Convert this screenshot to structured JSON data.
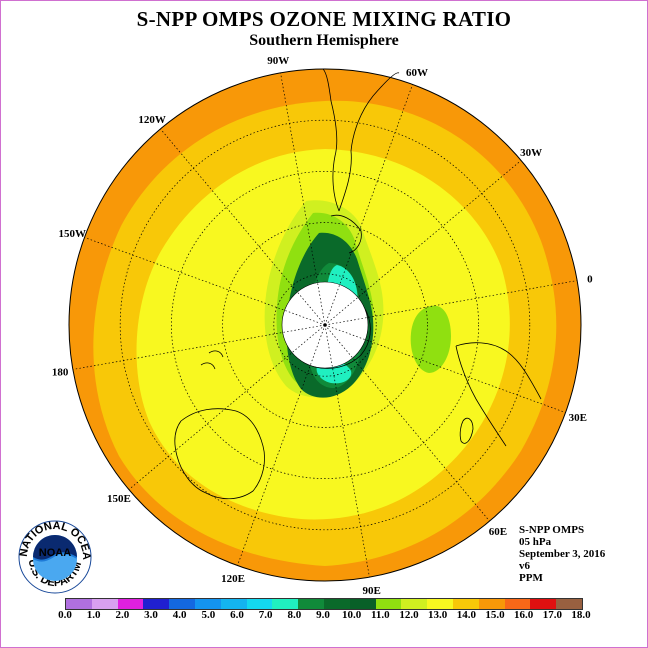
{
  "title": "S-NPP OMPS OZONE MIXING RATIO",
  "subtitle": "Southern Hemisphere",
  "longitude_labels": [
    {
      "text": "90W",
      "lon": -90
    },
    {
      "text": "60W",
      "lon": -60
    },
    {
      "text": "120W",
      "lon": -120
    },
    {
      "text": "30W",
      "lon": -30
    },
    {
      "text": "150W",
      "lon": -150
    },
    {
      "text": "0",
      "lon": 0
    },
    {
      "text": "180",
      "lon": 180
    },
    {
      "text": "30E",
      "lon": 30
    },
    {
      "text": "150E",
      "lon": 150
    },
    {
      "text": "60E",
      "lon": 60
    },
    {
      "text": "120E",
      "lon": 120
    },
    {
      "text": "90E",
      "lon": 90
    }
  ],
  "info": {
    "instrument": "S-NPP OMPS",
    "level": "05 hPa",
    "date": "September 3, 2016",
    "version": "v6",
    "units": "PPM"
  },
  "logo": {
    "text": "NOAA",
    "ring_text": "NATIONAL OCEANIC AND ATMOSPHERIC ADMINISTRATION",
    "ring_text_bottom": "U.S. DEPARTMENT OF COMMERCE"
  },
  "colorbar": {
    "colors": [
      "#b070e0",
      "#d8a0f0",
      "#e020e0",
      "#2020d0",
      "#1468e0",
      "#1494f0",
      "#14b4f0",
      "#14d8f0",
      "#20f0c0",
      "#108a3a",
      "#0a6a2a",
      "#086028",
      "#90e010",
      "#d0f020",
      "#f8f820",
      "#f8c808",
      "#f89808",
      "#f86818",
      "#e01010",
      "#986040"
    ],
    "labels": [
      "0.0",
      "1.0",
      "2.0",
      "3.0",
      "4.0",
      "5.0",
      "6.0",
      "7.0",
      "8.0",
      "9.0",
      "10.0",
      "11.0",
      "12.0",
      "13.0",
      "14.0",
      "15.0",
      "16.0",
      "17.0",
      "18.0"
    ]
  }
}
